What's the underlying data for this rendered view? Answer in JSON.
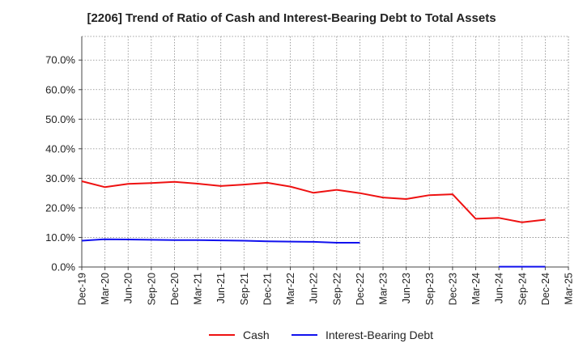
{
  "chart_data": {
    "type": "line",
    "title": "[2206]  Trend of Ratio of Cash and Interest-Bearing Debt to Total Assets",
    "xlabel": "",
    "ylabel": "",
    "ylim": [
      0,
      0.78
    ],
    "y_ticks": [
      0.0,
      0.1,
      0.2,
      0.3,
      0.4,
      0.5,
      0.6,
      0.7
    ],
    "y_tick_labels": [
      "0.0%",
      "10.0%",
      "20.0%",
      "30.0%",
      "40.0%",
      "50.0%",
      "60.0%",
      "70.0%"
    ],
    "x_tick_labels": [
      "Dec-19",
      "Mar-20",
      "Jun-20",
      "Sep-20",
      "Dec-20",
      "Mar-21",
      "Jun-21",
      "Sep-21",
      "Dec-21",
      "Mar-22",
      "Jun-22",
      "Sep-22",
      "Dec-22",
      "Mar-23",
      "Jun-23",
      "Sep-23",
      "Dec-23",
      "Mar-24",
      "Jun-24",
      "Sep-24",
      "Dec-24",
      "Mar-25"
    ],
    "grid": true,
    "legend_position": "bottom",
    "series": [
      {
        "name": "Cash",
        "color": "#ee1111",
        "values": [
          0.29,
          0.27,
          0.281,
          0.284,
          0.288,
          0.282,
          0.274,
          0.279,
          0.285,
          0.272,
          0.251,
          0.261,
          0.25,
          0.235,
          0.23,
          0.243,
          0.246,
          0.163,
          0.166,
          0.151,
          0.16,
          null
        ]
      },
      {
        "name": "Interest-Bearing Debt",
        "color": "#1111ee",
        "values": [
          0.089,
          0.094,
          0.093,
          0.092,
          0.091,
          0.091,
          0.09,
          0.089,
          0.087,
          0.086,
          0.085,
          0.082,
          0.082,
          null,
          null,
          null,
          null,
          null,
          0.001,
          0.001,
          0.001,
          null
        ]
      }
    ]
  }
}
